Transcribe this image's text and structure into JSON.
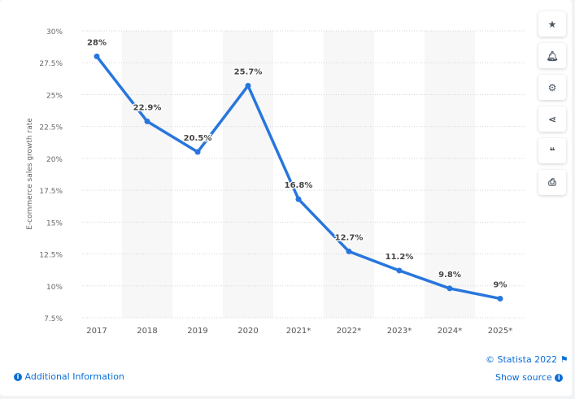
{
  "chart_data": {
    "type": "line",
    "categories": [
      "2017",
      "2018",
      "2019",
      "2020",
      "2021*",
      "2022*",
      "2023*",
      "2024*",
      "2025*"
    ],
    "values": [
      28,
      22.9,
      20.5,
      25.7,
      16.8,
      12.7,
      11.2,
      9.8,
      9
    ],
    "data_labels": [
      "28%",
      "22.9%",
      "20.5%",
      "25.7%",
      "16.8%",
      "12.7%",
      "11.2%",
      "9.8%",
      "9%"
    ],
    "ylabel": "E-commerce sales growth rate",
    "ylim": [
      7.5,
      30
    ],
    "yticks": [
      "7.5%",
      "10%",
      "12.5%",
      "15%",
      "17.5%",
      "20%",
      "22.5%",
      "25%",
      "27.5%",
      "30%"
    ],
    "grid": true,
    "line_color": "#2876dd"
  },
  "sidebar": {
    "icons": [
      "star-icon",
      "bell-icon",
      "gear-icon",
      "share-icon",
      "quote-icon",
      "print-icon"
    ]
  },
  "footer": {
    "copyright": "© Statista 2022",
    "additional": "Additional Information",
    "source": "Show source"
  }
}
